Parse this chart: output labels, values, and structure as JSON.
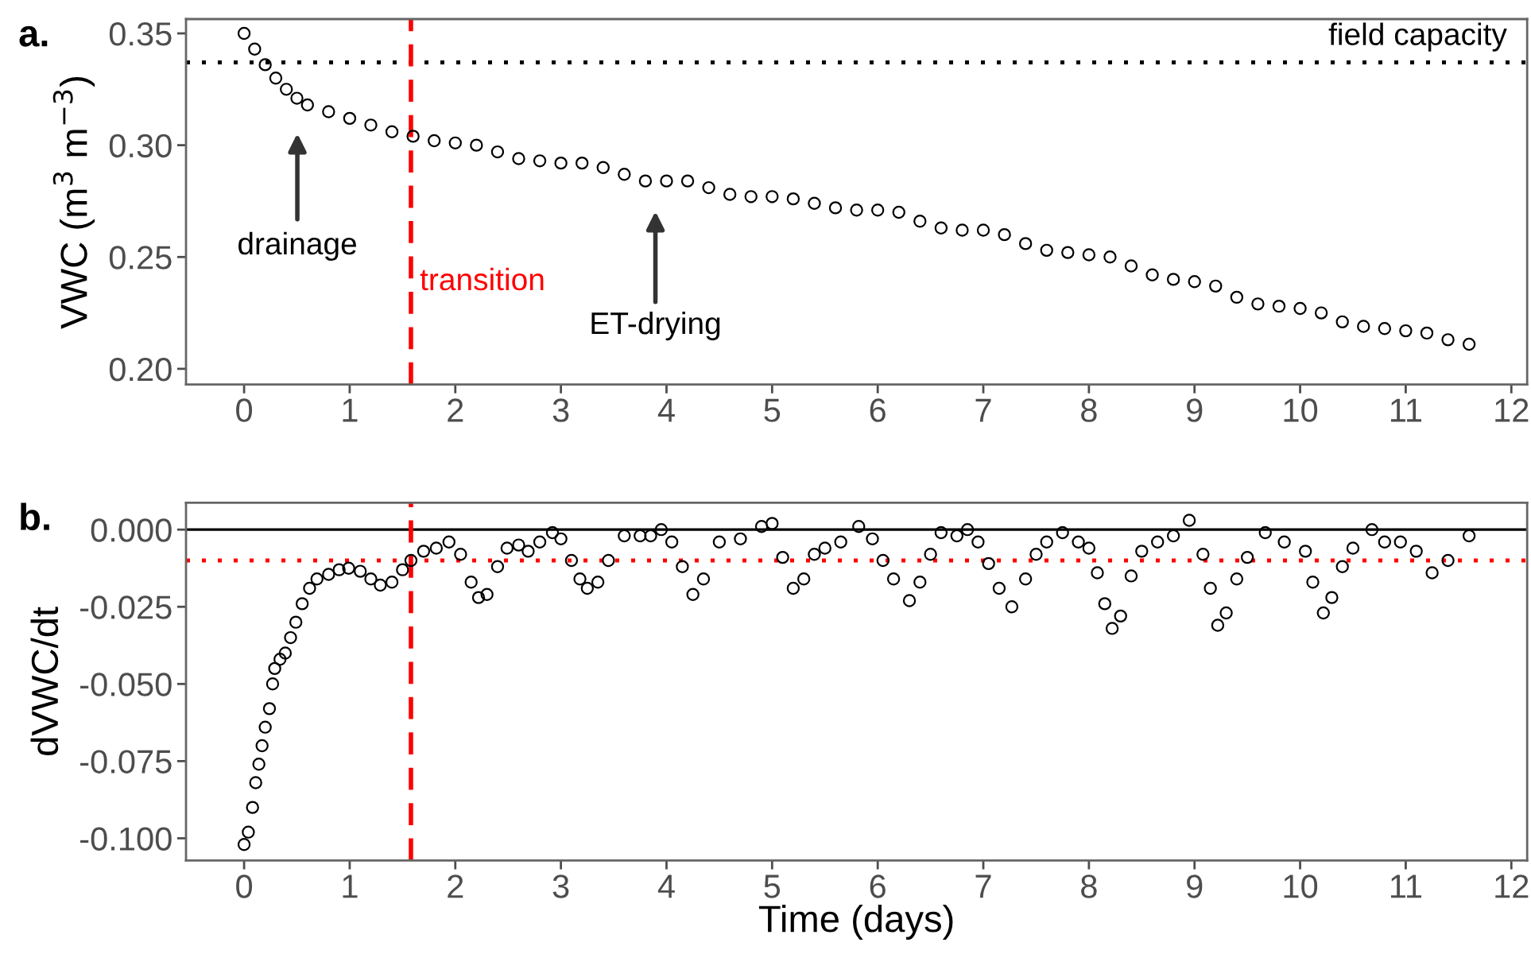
{
  "chart_data": [
    {
      "type": "scatter",
      "title": "a.",
      "ylabel": "VWC (m$^{3}$ m$^{−3}$)",
      "marker": "circle",
      "grid": false,
      "xlim": [
        -0.55,
        12.15
      ],
      "xticks": [
        0,
        1,
        2,
        3,
        4,
        5,
        6,
        7,
        8,
        9,
        10,
        11,
        12
      ],
      "ylim": [
        0.193,
        0.3564
      ],
      "yticks": [
        {
          "value": 0.2,
          "label": "0.20"
        },
        {
          "value": 0.25,
          "label": "0.25"
        },
        {
          "value": 0.3,
          "label": "0.30"
        },
        {
          "value": 0.35,
          "label": "0.35"
        }
      ],
      "series": [
        {
          "color": "#000000",
          "x": [
            0,
            0.1,
            0.2,
            0.3,
            0.4,
            0.5,
            0.6,
            0.8,
            1.0,
            1.2,
            1.4,
            1.6,
            1.8,
            2.0,
            2.2,
            2.4,
            2.6,
            2.8,
            3.0,
            3.2,
            3.4,
            3.6,
            3.8,
            4.0,
            4.2,
            4.4,
            4.6,
            4.8,
            5.0,
            5.2,
            5.4,
            5.6,
            5.8,
            6.0,
            6.2,
            6.4,
            6.6,
            6.8,
            7.0,
            7.2,
            7.4,
            7.6,
            7.8,
            8.0,
            8.2,
            8.4,
            8.6,
            8.8,
            9.0,
            9.2,
            9.4,
            9.6,
            9.8,
            10.0,
            10.2,
            10.4,
            10.6,
            10.8,
            11.0,
            11.2,
            11.4,
            11.6
          ],
          "values": [
            0.35,
            0.343,
            0.336,
            0.33,
            0.325,
            0.321,
            0.318,
            0.315,
            0.312,
            0.309,
            0.306,
            0.304,
            0.302,
            0.301,
            0.3,
            0.297,
            0.294,
            0.293,
            0.292,
            0.292,
            0.29,
            0.287,
            0.284,
            0.284,
            0.284,
            0.281,
            0.278,
            0.277,
            0.277,
            0.276,
            0.274,
            0.272,
            0.271,
            0.271,
            0.27,
            0.266,
            0.263,
            0.262,
            0.262,
            0.26,
            0.256,
            0.253,
            0.252,
            0.251,
            0.25,
            0.246,
            0.242,
            0.24,
            0.239,
            0.237,
            0.232,
            0.229,
            0.228,
            0.227,
            0.225,
            0.221,
            0.219,
            0.218,
            0.217,
            0.216,
            0.213,
            0.211
          ]
        }
      ],
      "ref_lines": [
        {
          "axis": "y",
          "value": 0.337,
          "label": "field capacity",
          "color": "#000000",
          "line_style": "dotted"
        },
        {
          "axis": "x",
          "value": 1.58,
          "label": "transition",
          "color": "#ff0000",
          "line_style": "dashed"
        }
      ],
      "annotations": [
        "drainage",
        "ET-drying"
      ]
    },
    {
      "type": "scatter",
      "title": "b.",
      "xlabel": "Time (days)",
      "ylabel": "dVWC/dt",
      "marker": "circle",
      "grid": false,
      "xlim": [
        -0.55,
        12.15
      ],
      "xticks": [
        0,
        1,
        2,
        3,
        4,
        5,
        6,
        7,
        8,
        9,
        10,
        11,
        12
      ],
      "ylim": [
        -0.1072,
        0.0087
      ],
      "yticks": [
        {
          "value": -0.1,
          "label": "-0.100"
        },
        {
          "value": -0.075,
          "label": "-0.075"
        },
        {
          "value": -0.05,
          "label": "-0.050"
        },
        {
          "value": -0.025,
          "label": "-0.025"
        },
        {
          "value": 0,
          "label": "0.000"
        }
      ],
      "series": [
        {
          "color": "#000000",
          "x": [
            0,
            0.04,
            0.08,
            0.11,
            0.14,
            0.17,
            0.2,
            0.24,
            0.27,
            0.29,
            0.34,
            0.39,
            0.44,
            0.49,
            0.55,
            0.62,
            0.69,
            0.8,
            0.9,
            0.99,
            1.1,
            1.2,
            1.29,
            1.4,
            1.5,
            1.58,
            1.7,
            1.82,
            1.94,
            2.05,
            2.15,
            2.22,
            2.3,
            2.4,
            2.49,
            2.6,
            2.69,
            2.8,
            2.92,
            3.0,
            3.1,
            3.18,
            3.25,
            3.35,
            3.45,
            3.6,
            3.75,
            3.85,
            3.95,
            4.05,
            4.15,
            4.25,
            4.35,
            4.5,
            4.7,
            4.9,
            5.0,
            5.1,
            5.2,
            5.3,
            5.4,
            5.5,
            5.65,
            5.82,
            5.95,
            6.05,
            6.15,
            6.3,
            6.4,
            6.5,
            6.6,
            6.75,
            6.85,
            6.95,
            7.05,
            7.15,
            7.27,
            7.4,
            7.5,
            7.6,
            7.75,
            7.9,
            8.0,
            8.08,
            8.15,
            8.22,
            8.3,
            8.4,
            8.5,
            8.65,
            8.8,
            8.95,
            9.08,
            9.15,
            9.22,
            9.3,
            9.4,
            9.5,
            9.67,
            9.85,
            10.05,
            10.12,
            10.22,
            10.3,
            10.4,
            10.5,
            10.68,
            10.8,
            10.95,
            11.1,
            11.25,
            11.4,
            11.6
          ],
          "values": [
            -0.102,
            -0.098,
            -0.09,
            -0.082,
            -0.076,
            -0.07,
            -0.064,
            -0.058,
            -0.05,
            -0.045,
            -0.042,
            -0.04,
            -0.035,
            -0.03,
            -0.024,
            -0.019,
            -0.016,
            -0.0145,
            -0.013,
            -0.0125,
            -0.0135,
            -0.016,
            -0.018,
            -0.017,
            -0.013,
            -0.01,
            -0.007,
            -0.006,
            -0.004,
            -0.008,
            -0.017,
            -0.022,
            -0.021,
            -0.012,
            -0.006,
            -0.005,
            -0.007,
            -0.004,
            -0.001,
            -0.003,
            -0.01,
            -0.016,
            -0.019,
            -0.017,
            -0.01,
            -0.002,
            -0.002,
            -0.002,
            0.0,
            -0.004,
            -0.012,
            -0.021,
            -0.016,
            -0.004,
            -0.003,
            0.001,
            0.002,
            -0.009,
            -0.019,
            -0.016,
            -0.008,
            -0.006,
            -0.004,
            0.001,
            -0.003,
            -0.01,
            -0.016,
            -0.023,
            -0.017,
            -0.008,
            -0.001,
            -0.002,
            0.0,
            -0.004,
            -0.011,
            -0.019,
            -0.025,
            -0.016,
            -0.008,
            -0.004,
            -0.001,
            -0.004,
            -0.006,
            -0.014,
            -0.024,
            -0.032,
            -0.028,
            -0.015,
            -0.007,
            -0.004,
            -0.002,
            0.003,
            -0.008,
            -0.019,
            -0.031,
            -0.027,
            -0.016,
            -0.009,
            -0.001,
            -0.004,
            -0.007,
            -0.017,
            -0.027,
            -0.022,
            -0.012,
            -0.006,
            0.0,
            -0.004,
            -0.004,
            -0.007,
            -0.014,
            -0.01,
            -0.002
          ]
        }
      ],
      "ref_lines": [
        {
          "axis": "y",
          "value": 0,
          "color": "#000000",
          "line_style": "solid"
        },
        {
          "axis": "y",
          "value": -0.01,
          "color": "#ff0000",
          "line_style": "dotted"
        },
        {
          "axis": "x",
          "value": 1.58,
          "color": "#ff0000",
          "line_style": "dashed"
        }
      ]
    }
  ]
}
